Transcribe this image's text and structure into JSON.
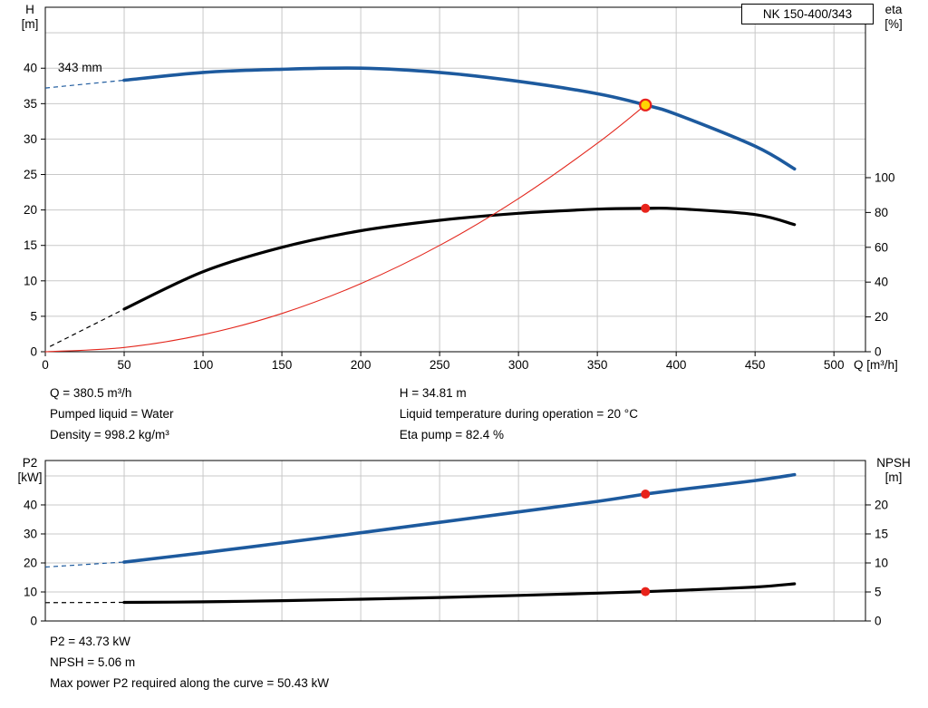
{
  "title_box": "NK 150-400/343",
  "colors": {
    "curve_blue": "#1d5a9e",
    "curve_black": "#000000",
    "curve_red": "#e3271d",
    "marker_red": "#e8231b",
    "marker_yellow": "#ffd503",
    "grid": "#c8c8c8",
    "axis": "#000000"
  },
  "info_top": {
    "q": "Q = 380.5 m³/h",
    "h": "H = 34.81 m",
    "liquid": "Pumped liquid = Water",
    "temp": "Liquid temperature during operation = 20 °C",
    "density": "Density = 998.2 kg/m³",
    "eta": "Eta pump = 82.4 %"
  },
  "info_bottom": {
    "p2": "P2 = 43.73 kW",
    "npsh": "NPSH = 5.06 m",
    "maxp": "Max power P2 required along the curve = 50.43 kW"
  },
  "chart_data": [
    {
      "type": "line",
      "title": "NK 150-400/343",
      "x_axis": {
        "label": "Q [m³/h]",
        "min": 0,
        "max": 520,
        "ticks": [
          0,
          50,
          100,
          150,
          200,
          250,
          300,
          350,
          400,
          450,
          500
        ],
        "show_labels": true
      },
      "y_left": {
        "label": [
          "H",
          "[m]"
        ],
        "min": 0,
        "max": 48.6,
        "ticks": [
          0,
          5,
          10,
          15,
          20,
          25,
          30,
          35,
          40
        ],
        "grid_step": 5
      },
      "y_right": {
        "label": [
          "eta",
          "[%]"
        ],
        "min": 0,
        "max": 197.9,
        "ticks": [
          0,
          20,
          40,
          60,
          80,
          100
        ]
      },
      "annotation": {
        "text": "343 mm",
        "q": 8,
        "h": 39.5
      },
      "series": [
        {
          "name": "head-curve",
          "axis": "left",
          "color": "#1d5a9e",
          "width": 3.6,
          "dashed_lead": [
            [
              0,
              37.2
            ],
            [
              50,
              38.3
            ]
          ],
          "points": [
            [
              50,
              38.3
            ],
            [
              100,
              39.4
            ],
            [
              150,
              39.85
            ],
            [
              200,
              40.0
            ],
            [
              250,
              39.4
            ],
            [
              300,
              38.15
            ],
            [
              350,
              36.4
            ],
            [
              380.5,
              34.81
            ],
            [
              400,
              33.5
            ],
            [
              450,
              29.0
            ],
            [
              475,
              25.8
            ]
          ]
        },
        {
          "name": "eta-curve",
          "axis": "right",
          "color": "#000000",
          "width": 3.2,
          "dashed_lead": [
            [
              3,
              3
            ],
            [
              50,
              24.5
            ]
          ],
          "points": [
            [
              50,
              24.5
            ],
            [
              100,
              46
            ],
            [
              150,
              60
            ],
            [
              200,
              69.5
            ],
            [
              250,
              75.5
            ],
            [
              300,
              79.5
            ],
            [
              350,
              81.9
            ],
            [
              380.5,
              82.4
            ],
            [
              400,
              82.2
            ],
            [
              450,
              78.8
            ],
            [
              475,
              73.0
            ]
          ]
        },
        {
          "name": "system-curve",
          "axis": "left",
          "color": "#e3271d",
          "width": 1.1,
          "points": [
            [
              0,
              0
            ],
            [
              50,
              0.6
            ],
            [
              100,
              2.4
            ],
            [
              150,
              5.4
            ],
            [
              200,
              9.6
            ],
            [
              250,
              15.0
            ],
            [
              300,
              21.6
            ],
            [
              350,
              29.4
            ],
            [
              380.5,
              34.81
            ]
          ]
        }
      ],
      "markers": [
        {
          "name": "duty-point-marker",
          "axis": "left",
          "x": 380.5,
          "y": 34.81,
          "r": 6,
          "fill": "#ffd503",
          "stroke": "#e8231b"
        },
        {
          "name": "eta-point-marker",
          "axis": "right",
          "x": 380.5,
          "y": 82.4,
          "r": 5,
          "fill": "#e8231b"
        }
      ]
    },
    {
      "type": "line",
      "title": "",
      "x_axis": {
        "label": "",
        "min": 0,
        "max": 520,
        "ticks": [
          0,
          50,
          100,
          150,
          200,
          250,
          300,
          350,
          400,
          450,
          500
        ],
        "show_labels": false
      },
      "y_left": {
        "label": [
          "P2",
          "[kW]"
        ],
        "min": 0,
        "max": 55.3,
        "ticks": [
          0,
          10,
          20,
          30,
          40
        ],
        "grid_step": 10
      },
      "y_right": {
        "label": [
          "NPSH",
          "[m]"
        ],
        "min": 0,
        "max": 27.65,
        "ticks": [
          0,
          5,
          10,
          15,
          20
        ]
      },
      "series": [
        {
          "name": "p2-curve",
          "axis": "left",
          "color": "#1d5a9e",
          "width": 3.6,
          "dashed_lead": [
            [
              0,
              18.6
            ],
            [
              50,
              20.3
            ]
          ],
          "points": [
            [
              50,
              20.3
            ],
            [
              100,
              23.5
            ],
            [
              150,
              26.9
            ],
            [
              200,
              30.4
            ],
            [
              250,
              34.0
            ],
            [
              300,
              37.6
            ],
            [
              350,
              41.2
            ],
            [
              380.5,
              43.73
            ],
            [
              400,
              45.1
            ],
            [
              450,
              48.4
            ],
            [
              475,
              50.43
            ]
          ]
        },
        {
          "name": "npsh-curve",
          "axis": "right",
          "color": "#000000",
          "width": 3.2,
          "dashed_lead": [
            [
              0,
              3.15
            ],
            [
              50,
              3.2
            ]
          ],
          "points": [
            [
              50,
              3.2
            ],
            [
              100,
              3.3
            ],
            [
              150,
              3.5
            ],
            [
              200,
              3.75
            ],
            [
              250,
              4.05
            ],
            [
              300,
              4.4
            ],
            [
              350,
              4.8
            ],
            [
              380.5,
              5.06
            ],
            [
              400,
              5.25
            ],
            [
              450,
              5.85
            ],
            [
              475,
              6.4
            ]
          ]
        }
      ],
      "markers": [
        {
          "name": "p2-point-marker",
          "axis": "left",
          "x": 380.5,
          "y": 43.73,
          "r": 5,
          "fill": "#e8231b"
        },
        {
          "name": "npsh-point-marker",
          "axis": "right",
          "x": 380.5,
          "y": 5.06,
          "r": 5,
          "fill": "#e8231b"
        }
      ]
    }
  ]
}
